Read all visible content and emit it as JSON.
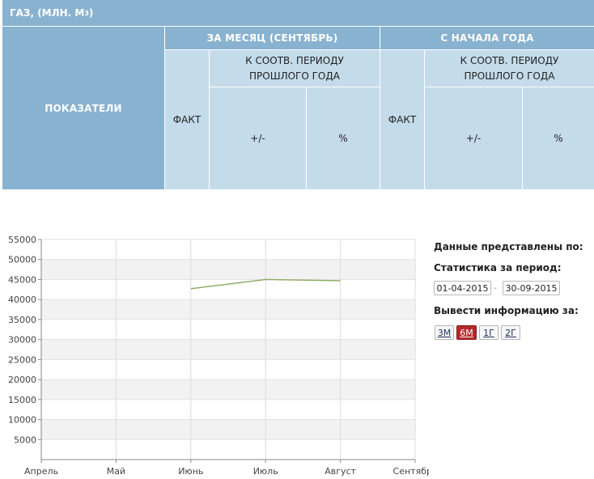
{
  "table": {
    "title": "ГАЗ, (МЛН. М",
    "title_sup": "3",
    "title_close": ")",
    "indicators": "ПОКАЗАТЕЛИ",
    "month_group": "ЗА МЕСЯЦ (СЕНТЯБРЬ)",
    "year_group": "С НАЧАЛА ГОДА",
    "fact": "ФАКТ",
    "prev_period": "К СООТВ. ПЕРИОДУ ПРОШЛОГО ГОДА",
    "diff": "+/-",
    "pct": "%"
  },
  "sidebar": {
    "data_by": "Данные представлены по:",
    "stats_period": "Статистика за период:",
    "date_from": "01-04-2015",
    "date_to": "30-09-2015",
    "dash": "-",
    "show_for": "Вывести информацию за:",
    "periods": [
      "3М",
      "6М",
      "1Г",
      "2Г"
    ],
    "active_period": "6М"
  },
  "chart_data": {
    "type": "line",
    "categories": [
      "Апрель",
      "Май",
      "Июнь",
      "Июль",
      "Август",
      "Сентябрь"
    ],
    "series": [
      {
        "color": "#8aa860",
        "values": [
          null,
          null,
          42700,
          45000,
          44700,
          null
        ]
      }
    ],
    "yticks": [
      5000,
      10000,
      15000,
      20000,
      25000,
      30000,
      35000,
      40000,
      45000,
      50000,
      55000
    ],
    "ylim": [
      0,
      55000
    ],
    "grid": true,
    "band_colors": [
      "#ffffff",
      "#f2f2f2"
    ]
  }
}
